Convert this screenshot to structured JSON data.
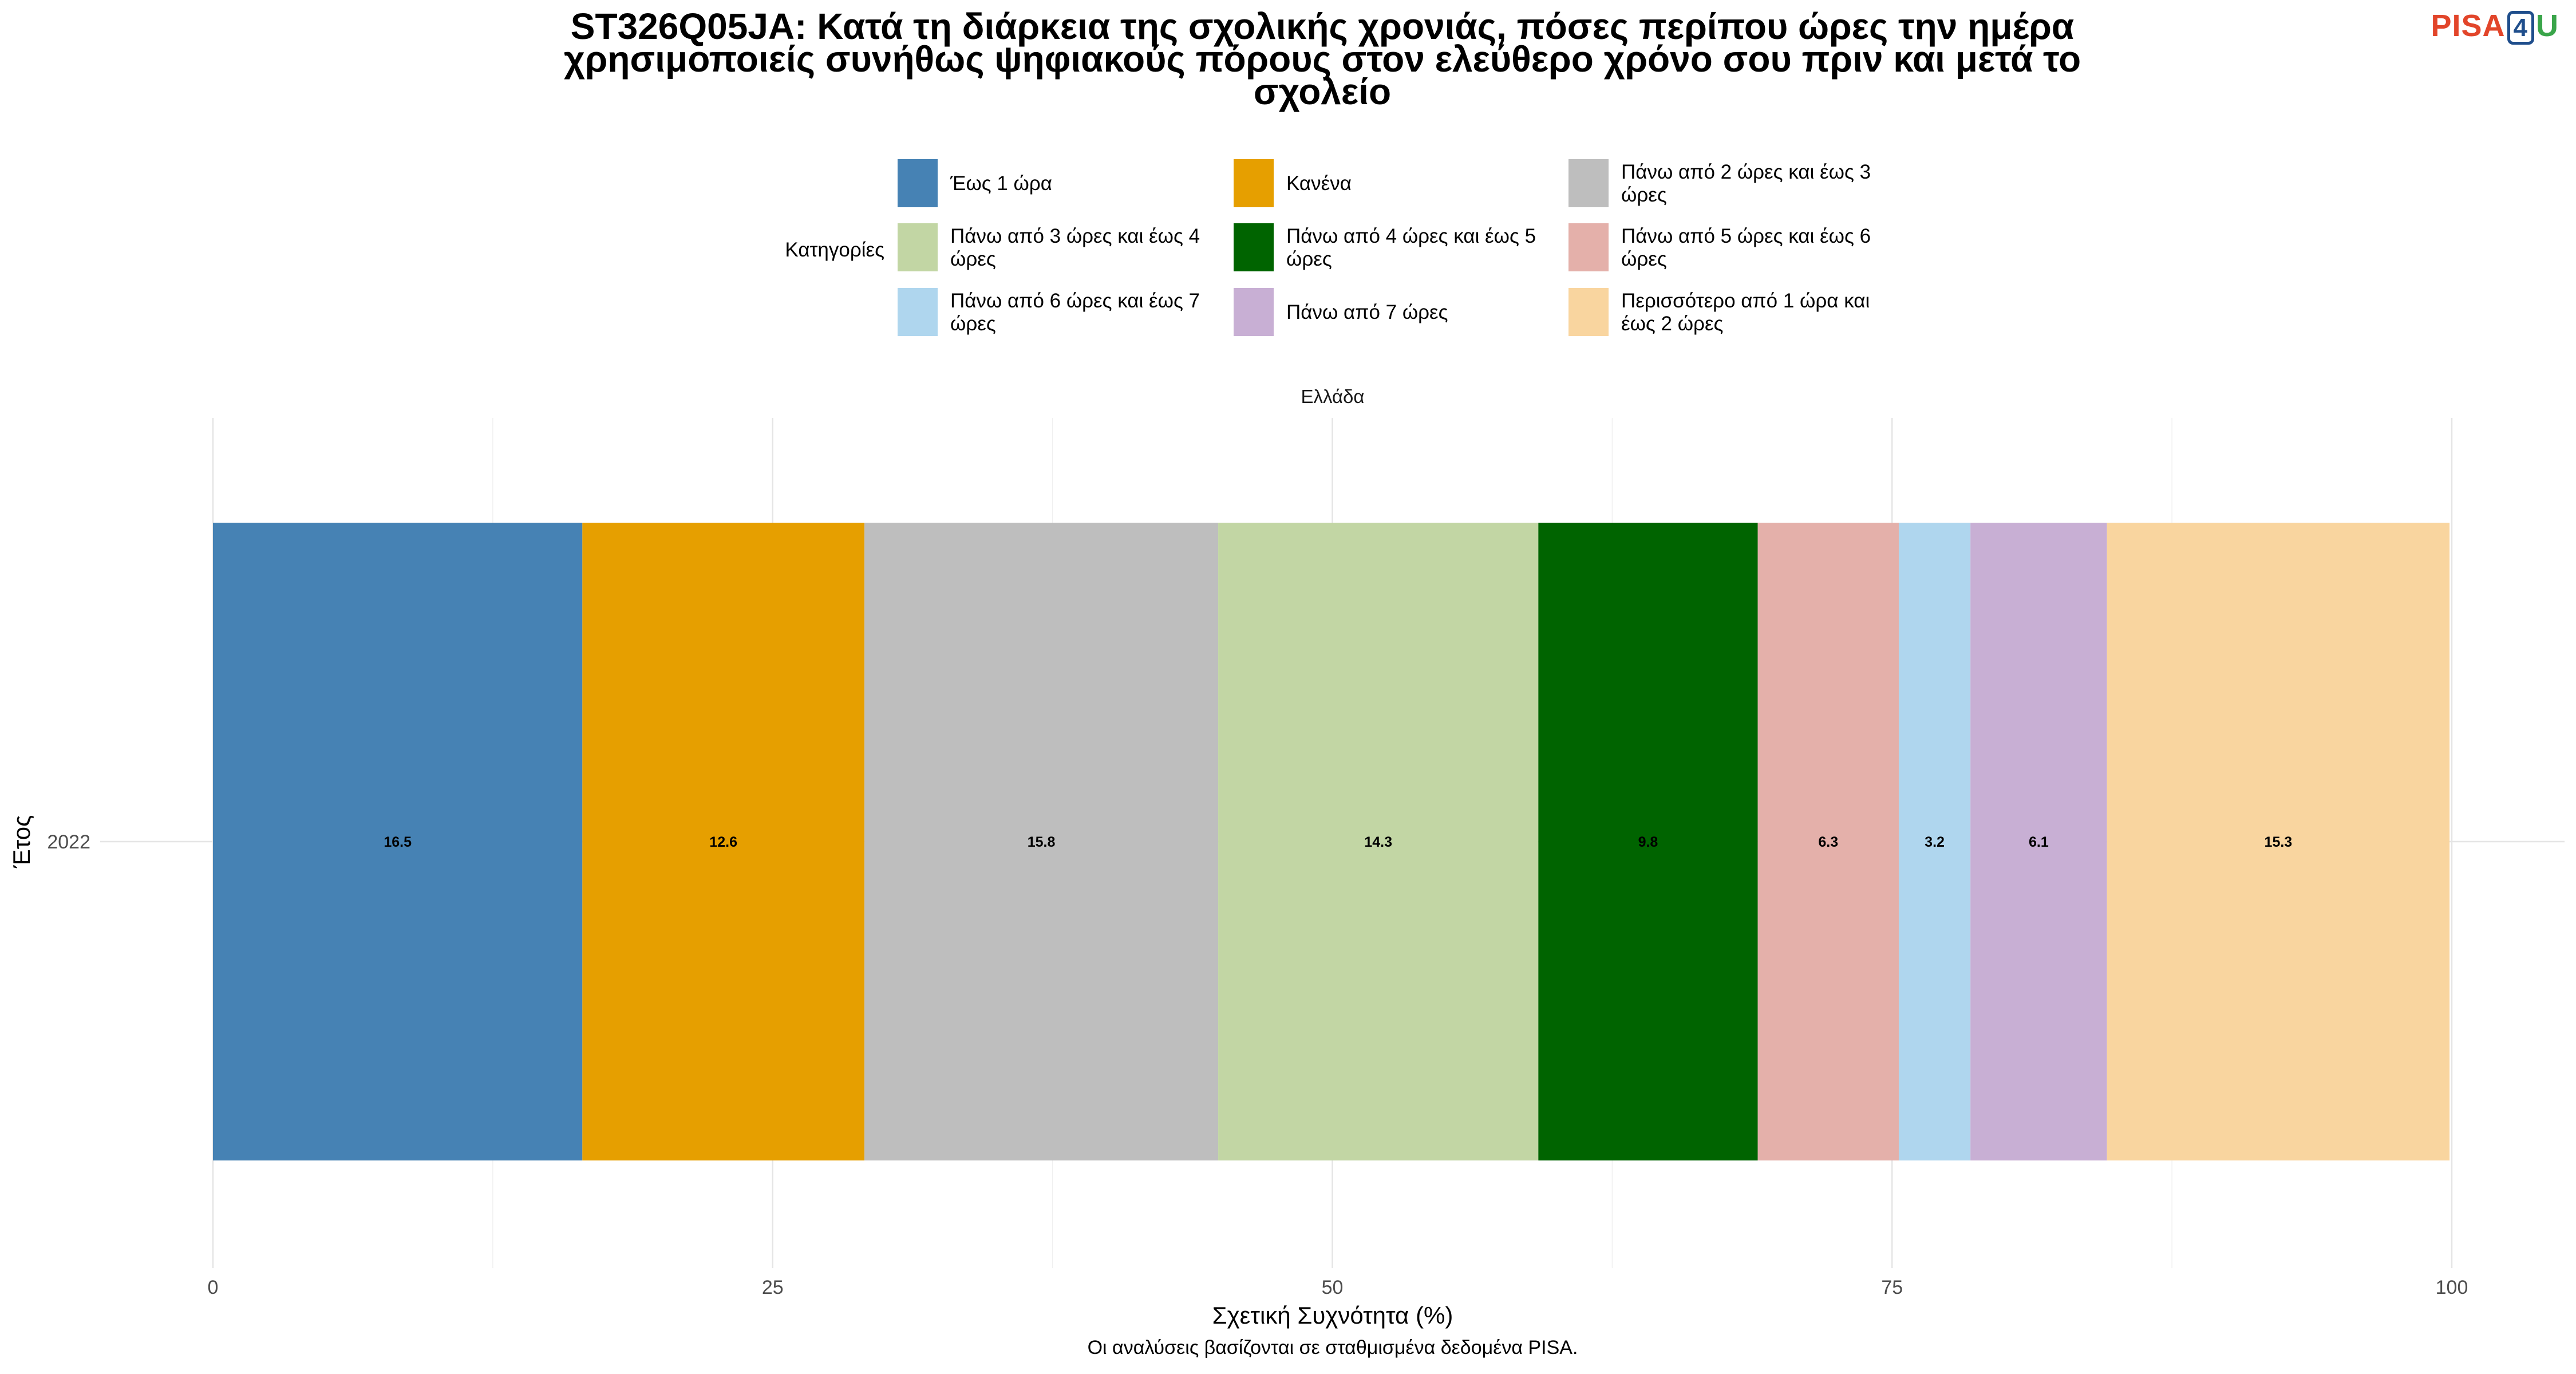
{
  "logo": {
    "part1": "PISA",
    "part2": "4",
    "part3": "U"
  },
  "chart_data": {
    "type": "bar",
    "orientation": "horizontal-stacked",
    "title": "ST326Q05JA: Κατά τη διάρκεια της σχολικής χρονιάς, πόσες περίπου ώρες την ημέρα χρησιμοποιείς συνήθως ψηφιακούς πόρους στον ελεύθερο χρόνο σου πριν και μετά το σχολείο",
    "title_lines": [
      "ST326Q05JA: Κατά τη διάρκεια της σχολικής χρονιάς, πόσες περίπου ώρες την ημέρα",
      "χρησιμοποιείς συνήθως ψηφιακούς πόρους στον ελεύθερο χρόνο σου πριν και μετά το",
      "σχολείο"
    ],
    "legend_title": "Κατηγορίες",
    "legend_position": "top",
    "facet": "Ελλάδα",
    "categories": [
      "2022"
    ],
    "xlabel": "Σχετική Συχνότητα (%)",
    "ylabel": "Έτος",
    "xlim": [
      0,
      100
    ],
    "xticks": [
      "0",
      "25",
      "50",
      "75",
      "100"
    ],
    "grid": true,
    "caption": "Οι αναλύσεις βασίζονται σε σταθμισμένα δεδομένα PISA.",
    "series": [
      {
        "name": "Έως 1 ώρα",
        "legend_lines": [
          "Έως 1 ώρα"
        ],
        "values": [
          16.5
        ],
        "label": "16.5",
        "color": "#4682b4"
      },
      {
        "name": "Κανένα",
        "legend_lines": [
          "Κανένα"
        ],
        "values": [
          12.6
        ],
        "label": "12.6",
        "color": "#e69f00"
      },
      {
        "name": "Πάνω από 2 ώρες και έως 3 ώρες",
        "legend_lines": [
          "Πάνω από 2 ώρες και έως 3",
          "ώρες"
        ],
        "values": [
          15.8
        ],
        "label": "15.8",
        "color": "#bebebe"
      },
      {
        "name": "Πάνω από 3 ώρες και έως 4 ώρες",
        "legend_lines": [
          "Πάνω από 3 ώρες και έως 4",
          "ώρες"
        ],
        "values": [
          14.3
        ],
        "label": "14.3",
        "color": "#c2d6a4"
      },
      {
        "name": "Πάνω από 4 ώρες και έως 5 ώρες",
        "legend_lines": [
          "Πάνω από 4 ώρες και έως 5",
          "ώρες"
        ],
        "values": [
          9.8
        ],
        "label": "9.8",
        "color": "#006400"
      },
      {
        "name": "Πάνω από 5 ώρες και έως 6 ώρες",
        "legend_lines": [
          "Πάνω από 5 ώρες και έως 6",
          "ώρες"
        ],
        "values": [
          6.3
        ],
        "label": "6.3",
        "color": "#e4b0aa"
      },
      {
        "name": "Πάνω από 6 ώρες και έως 7 ώρες",
        "legend_lines": [
          "Πάνω από 6 ώρες και έως 7",
          "ώρες"
        ],
        "values": [
          3.2
        ],
        "label": "3.2",
        "color": "#afd6ee"
      },
      {
        "name": "Πάνω από 7 ώρες",
        "legend_lines": [
          "Πάνω από 7 ώρες"
        ],
        "values": [
          6.1
        ],
        "label": "6.1",
        "color": "#c8afd4"
      },
      {
        "name": "Περισσότερο από 1 ώρα και έως 2 ώρες",
        "legend_lines": [
          "Περισσότερο από 1 ώρα και",
          "έως 2 ώρες"
        ],
        "values": [
          15.3
        ],
        "label": "15.3",
        "color": "#f9d59f"
      }
    ]
  }
}
